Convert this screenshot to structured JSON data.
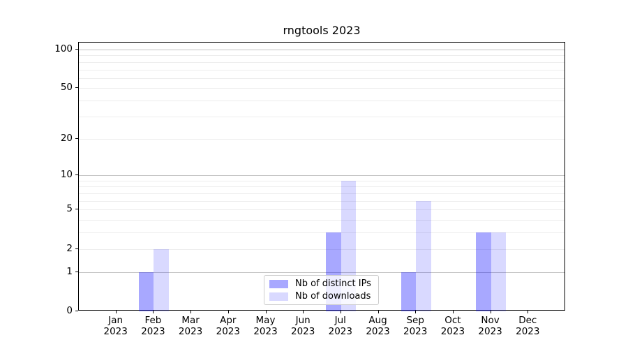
{
  "title": "rngtools 2023",
  "chart_data": {
    "type": "bar",
    "title": "rngtools 2023",
    "categories": [
      "Jan 2023",
      "Feb 2023",
      "Mar 2023",
      "Apr 2023",
      "May 2023",
      "Jun 2023",
      "Jul 2023",
      "Aug 2023",
      "Sep 2023",
      "Oct 2023",
      "Nov 2023",
      "Dec 2023"
    ],
    "series": [
      {
        "name": "Nb of distinct IPs",
        "color": "rgba(0,0,255,0.34)",
        "values": [
          0,
          1,
          0,
          0,
          0,
          0,
          3,
          0,
          1,
          0,
          3,
          0
        ]
      },
      {
        "name": "Nb of downloads",
        "color": "rgba(0,0,255,0.15)",
        "values": [
          0,
          2,
          0,
          0,
          0,
          0,
          9,
          0,
          6,
          0,
          3,
          0
        ]
      }
    ],
    "xlabel": "",
    "ylabel": "",
    "yscale": "log1p",
    "ylim": [
      0,
      113
    ],
    "y_tick_values": [
      0,
      1,
      2,
      5,
      10,
      20,
      50,
      100
    ],
    "major_grid": [
      1,
      10,
      100
    ],
    "minor_grid": [
      2,
      3,
      4,
      5,
      6,
      7,
      8,
      9,
      20,
      30,
      40,
      50,
      60,
      70,
      80,
      90
    ],
    "grid": "on",
    "legend_position": "lower center"
  },
  "colors": {
    "major_grid": "#c3c3c3",
    "minor_grid": "#ededed",
    "spine": "#000000",
    "legend_border": "#cccccc",
    "background": "#ffffff"
  }
}
